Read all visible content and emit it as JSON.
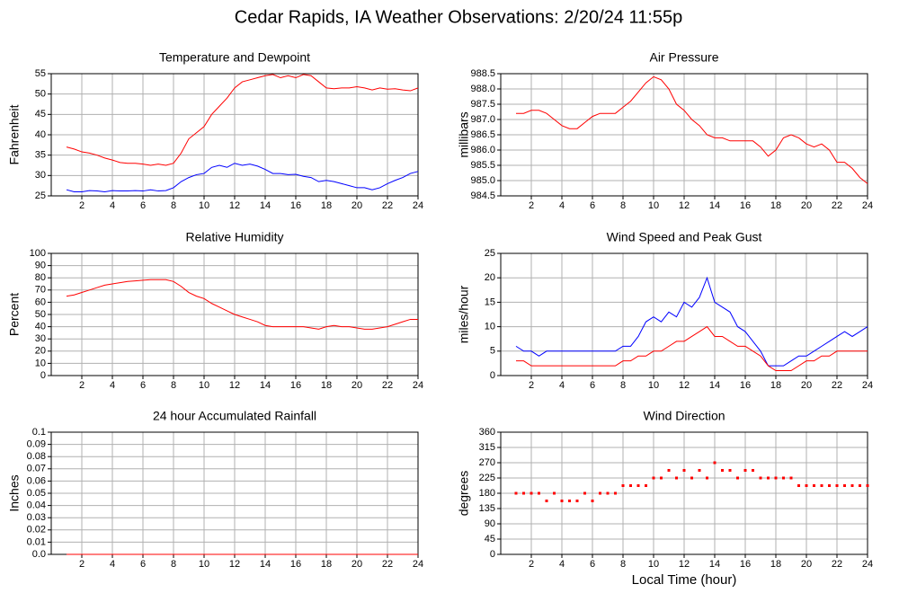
{
  "title": "Cedar Rapids, IA Weather Observations: 2/20/24 11:55p",
  "chart_data": [
    {
      "type": "line",
      "title": "Temperature and Dewpoint",
      "ylabel": "Fahrenheit",
      "x": [
        1,
        1.5,
        2,
        2.5,
        3,
        3.5,
        4,
        4.5,
        5,
        5.5,
        6,
        6.5,
        7,
        7.5,
        8,
        8.5,
        9,
        9.5,
        10,
        10.5,
        11,
        11.5,
        12,
        12.5,
        13,
        13.5,
        14,
        14.5,
        15,
        15.5,
        16,
        16.5,
        17,
        17.5,
        18,
        18.5,
        19,
        19.5,
        20,
        20.5,
        21,
        21.5,
        22,
        22.5,
        23,
        23.5,
        24
      ],
      "series": [
        {
          "color": "#ff0000",
          "values": [
            37,
            36.5,
            35.8,
            35.5,
            35,
            34.3,
            33.8,
            33.2,
            33,
            33,
            32.8,
            32.5,
            32.8,
            32.5,
            33,
            35.5,
            39,
            40.5,
            42,
            45,
            47,
            49,
            51.5,
            53,
            53.5,
            54,
            54.5,
            54.8,
            54,
            54.5,
            54,
            54.8,
            54.5,
            53,
            51.5,
            51.3,
            51.5,
            51.5,
            51.8,
            51.5,
            51,
            51.5,
            51.2,
            51.3,
            51,
            50.8,
            51.5
          ]
        },
        {
          "color": "#0000ff",
          "values": [
            26.5,
            26,
            26,
            26.3,
            26.2,
            26,
            26.3,
            26.2,
            26.2,
            26.3,
            26.2,
            26.5,
            26.2,
            26.3,
            27,
            28.5,
            29.5,
            30.2,
            30.5,
            32,
            32.5,
            32,
            33,
            32.5,
            32.8,
            32.3,
            31.5,
            30.5,
            30.5,
            30.2,
            30.3,
            29.8,
            29.5,
            28.5,
            28.8,
            28.5,
            28,
            27.5,
            27,
            27,
            26.5,
            27,
            28,
            28.8,
            29.5,
            30.5,
            31
          ]
        }
      ],
      "xlim": [
        0,
        24
      ],
      "xticks": [
        2,
        4,
        6,
        8,
        10,
        12,
        14,
        16,
        18,
        20,
        22,
        24
      ],
      "ylim": [
        25,
        55
      ],
      "yticks": [
        25,
        30,
        35,
        40,
        45,
        50,
        55
      ],
      "grid": true
    },
    {
      "type": "line",
      "title": "Air Pressure",
      "ylabel": "millibars",
      "x": [
        1,
        1.5,
        2,
        2.5,
        3,
        3.5,
        4,
        4.5,
        5,
        5.5,
        6,
        6.5,
        7,
        7.5,
        8,
        8.5,
        9,
        9.5,
        10,
        10.5,
        11,
        11.5,
        12,
        12.5,
        13,
        13.5,
        14,
        14.5,
        15,
        15.5,
        16,
        16.5,
        17,
        17.5,
        18,
        18.5,
        19,
        19.5,
        20,
        20.5,
        21,
        21.5,
        22,
        22.5,
        23,
        23.5,
        24
      ],
      "series": [
        {
          "color": "#ff0000",
          "values": [
            987.2,
            987.2,
            987.3,
            987.3,
            987.2,
            987.0,
            986.8,
            986.7,
            986.7,
            986.9,
            987.1,
            987.2,
            987.2,
            987.2,
            987.4,
            987.6,
            987.9,
            988.2,
            988.4,
            988.3,
            988.0,
            987.5,
            987.3,
            987.0,
            986.8,
            986.5,
            986.4,
            986.4,
            986.3,
            986.3,
            986.3,
            986.3,
            986.1,
            985.8,
            986.0,
            986.4,
            986.5,
            986.4,
            986.2,
            986.1,
            986.2,
            986.0,
            985.6,
            985.6,
            985.4,
            985.1,
            984.9
          ]
        }
      ],
      "xlim": [
        0,
        24
      ],
      "xticks": [
        2,
        4,
        6,
        8,
        10,
        12,
        14,
        16,
        18,
        20,
        22,
        24
      ],
      "ylim": [
        984.5,
        988.5
      ],
      "yticks": [
        984.5,
        {
          "value": 985,
          "label": "985.0"
        },
        985.5,
        {
          "value": 986,
          "label": "986.0"
        },
        986.5,
        {
          "value": 987,
          "label": "987.0"
        },
        987.5,
        {
          "value": 988,
          "label": "988.0"
        },
        988.5
      ],
      "grid": true
    },
    {
      "type": "line",
      "title": "Relative Humidity",
      "ylabel": "Percent",
      "x": [
        1,
        1.5,
        2,
        2.5,
        3,
        3.5,
        4,
        4.5,
        5,
        5.5,
        6,
        6.5,
        7,
        7.5,
        8,
        8.5,
        9,
        9.5,
        10,
        10.5,
        11,
        11.5,
        12,
        12.5,
        13,
        13.5,
        14,
        14.5,
        15,
        15.5,
        16,
        16.5,
        17,
        17.5,
        18,
        18.5,
        19,
        19.5,
        20,
        20.5,
        21,
        21.5,
        22,
        22.5,
        23,
        23.5,
        24
      ],
      "series": [
        {
          "color": "#ff0000",
          "values": [
            65,
            66,
            68,
            70,
            72,
            74,
            75,
            76,
            77,
            77.5,
            78,
            78.5,
            78.5,
            78.5,
            77,
            73,
            68,
            65,
            63,
            59,
            56,
            53,
            50,
            48,
            46,
            44,
            41,
            40,
            40,
            40,
            40,
            40,
            39,
            38,
            40,
            41,
            40,
            40,
            39,
            38,
            38,
            39,
            40,
            42,
            44,
            46,
            46
          ]
        }
      ],
      "xlim": [
        0,
        24
      ],
      "xticks": [
        2,
        4,
        6,
        8,
        10,
        12,
        14,
        16,
        18,
        20,
        22,
        24
      ],
      "ylim": [
        0,
        100
      ],
      "yticks": [
        0,
        10,
        20,
        30,
        40,
        50,
        60,
        70,
        80,
        90,
        100
      ],
      "grid": true
    },
    {
      "type": "line",
      "title": "Wind Speed and Peak Gust",
      "ylabel": "miles/hour",
      "x": [
        1,
        1.5,
        2,
        2.5,
        3,
        3.5,
        4,
        4.5,
        5,
        5.5,
        6,
        6.5,
        7,
        7.5,
        8,
        8.5,
        9,
        9.5,
        10,
        10.5,
        11,
        11.5,
        12,
        12.5,
        13,
        13.5,
        14,
        14.5,
        15,
        15.5,
        16,
        16.5,
        17,
        17.5,
        18,
        18.5,
        19,
        19.5,
        20,
        20.5,
        21,
        21.5,
        22,
        22.5,
        23,
        23.5,
        24
      ],
      "series": [
        {
          "color": "#0000ff",
          "values": [
            6,
            5,
            5,
            4,
            5,
            5,
            5,
            5,
            5,
            5,
            5,
            5,
            5,
            5,
            6,
            6,
            8,
            11,
            12,
            11,
            13,
            12,
            15,
            14,
            16,
            20,
            15,
            14,
            13,
            10,
            9,
            7,
            5,
            2,
            2,
            2,
            3,
            4,
            4,
            5,
            6,
            7,
            8,
            9,
            8,
            9,
            10
          ]
        },
        {
          "color": "#ff0000",
          "values": [
            3,
            3,
            2,
            2,
            2,
            2,
            2,
            2,
            2,
            2,
            2,
            2,
            2,
            2,
            3,
            3,
            4,
            4,
            5,
            5,
            6,
            7,
            7,
            8,
            9,
            10,
            8,
            8,
            7,
            6,
            6,
            5,
            4,
            2,
            1,
            1,
            1,
            2,
            3,
            3,
            4,
            4,
            5,
            5,
            5,
            5,
            5
          ]
        }
      ],
      "xlim": [
        0,
        24
      ],
      "xticks": [
        2,
        4,
        6,
        8,
        10,
        12,
        14,
        16,
        18,
        20,
        22,
        24
      ],
      "ylim": [
        0,
        25
      ],
      "yticks": [
        0,
        5,
        10,
        15,
        20,
        25
      ],
      "grid": true
    },
    {
      "type": "line",
      "title": "24 hour Accumulated Rainfall",
      "ylabel": "Inches",
      "x": [
        1,
        24
      ],
      "series": [
        {
          "color": "#ff0000",
          "values": [
            0,
            0
          ]
        }
      ],
      "xlim": [
        0,
        24
      ],
      "xticks": [
        2,
        4,
        6,
        8,
        10,
        12,
        14,
        16,
        18,
        20,
        22,
        24
      ],
      "ylim": [
        0,
        0.1
      ],
      "yticks": [
        {
          "value": 0,
          "label": "0.0"
        },
        0.01,
        0.02,
        0.03,
        0.04,
        0.05,
        0.06,
        0.07,
        0.08,
        0.09,
        0.1
      ],
      "grid": true
    },
    {
      "type": "scatter",
      "title": "Wind Direction",
      "ylabel": "degrees",
      "xlabel": "Local Time (hour)",
      "x": [
        1,
        1.5,
        2,
        2.5,
        3,
        3.5,
        4,
        4.5,
        5,
        5.5,
        6,
        6.5,
        7,
        7.5,
        8,
        8.5,
        9,
        9.5,
        10,
        10.5,
        11,
        11.5,
        12,
        12.5,
        13,
        13.5,
        14,
        14.5,
        15,
        15.5,
        16,
        16.5,
        17,
        17.5,
        18,
        18.5,
        19,
        19.5,
        20,
        20.5,
        21,
        21.5,
        22,
        22.5,
        23,
        23.5,
        24
      ],
      "series": [
        {
          "color": "#ff0000",
          "values": [
            180,
            180,
            180,
            180,
            157.5,
            180,
            157.5,
            157.5,
            157.5,
            180,
            157.5,
            180,
            180,
            180,
            202.5,
            202.5,
            202.5,
            202.5,
            225,
            225,
            247.5,
            225,
            247.5,
            225,
            247.5,
            225,
            270,
            247.5,
            247.5,
            225,
            247.5,
            247.5,
            225,
            225,
            225,
            225,
            225,
            202.5,
            202.5,
            202.5,
            202.5,
            202.5,
            202.5,
            202.5,
            202.5,
            202.5,
            202.5
          ]
        }
      ],
      "xlim": [
        0,
        24
      ],
      "xticks": [
        2,
        4,
        6,
        8,
        10,
        12,
        14,
        16,
        18,
        20,
        22,
        24
      ],
      "ylim": [
        0,
        360
      ],
      "yticks": [
        0,
        45,
        90,
        135,
        180,
        225,
        270,
        315,
        360
      ],
      "grid": true
    }
  ]
}
